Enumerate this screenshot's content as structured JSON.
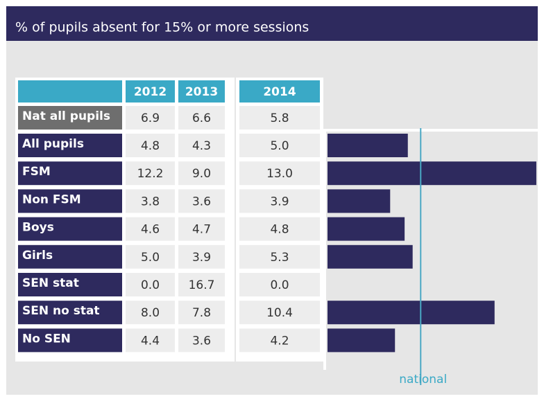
{
  "title": "% of pupils absent for 15% or more sessions",
  "table": {
    "columns": [
      "2012",
      "2013",
      "2014"
    ],
    "national": {
      "label": "Nat all pupils",
      "values": [
        "6.9",
        "6.6",
        "5.8"
      ]
    },
    "rows": [
      {
        "label": "All pupils",
        "values": [
          "4.8",
          "4.3",
          "5.0"
        ]
      },
      {
        "label": "FSM",
        "values": [
          "12.2",
          "9.0",
          "13.0"
        ]
      },
      {
        "label": "Non FSM",
        "values": [
          "3.8",
          "3.6",
          "3.9"
        ]
      },
      {
        "label": "Boys",
        "values": [
          "4.6",
          "4.7",
          "4.8"
        ]
      },
      {
        "label": "Girls",
        "values": [
          "5.0",
          "3.9",
          "5.3"
        ]
      },
      {
        "label": "SEN stat",
        "values": [
          "0.0",
          "16.7",
          "0.0"
        ]
      },
      {
        "label": "SEN no stat",
        "values": [
          "8.0",
          "7.8",
          "10.4"
        ]
      },
      {
        "label": "No SEN",
        "values": [
          "4.4",
          "3.6",
          "4.2"
        ]
      }
    ]
  },
  "bars": {
    "national_label": "national"
  }
}
